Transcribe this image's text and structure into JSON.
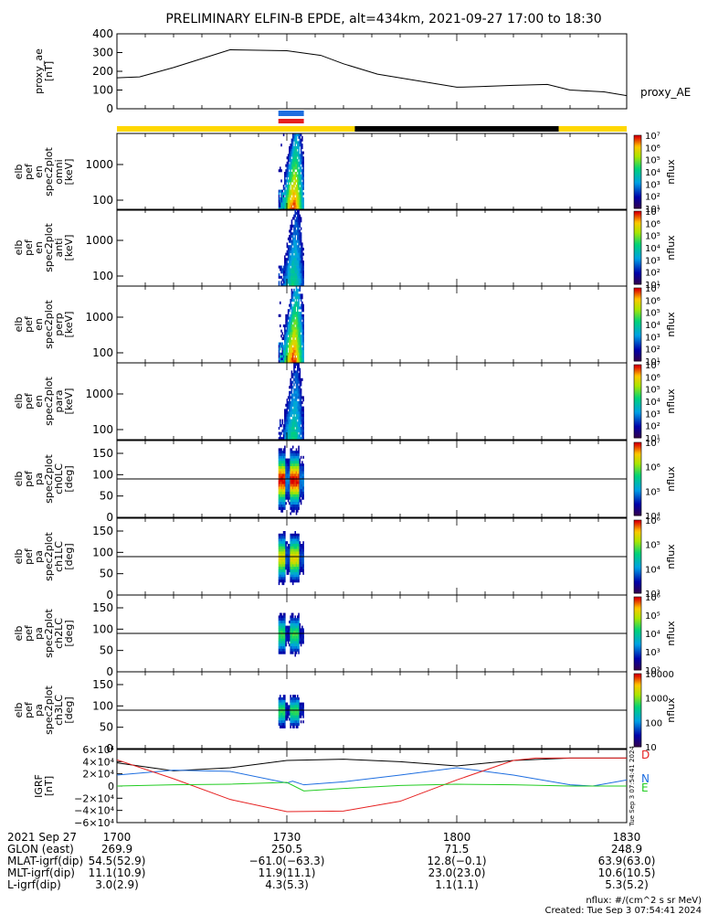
{
  "title": "PRELIMINARY ELFIN-B EPDE, alt=434km, 2021-09-27 17:00 to 18:30",
  "colors": {
    "yellow": "#ffd700",
    "black": "#000000",
    "blue": "#1e6ee0",
    "red": "#e62020",
    "green": "#22cc22"
  },
  "colorbar_unit": "nflux",
  "chart_data": [
    {
      "type": "line",
      "ylabel": [
        "proxy_ae",
        "[nT]"
      ],
      "legend": "proxy_AE",
      "y_ticks": [
        "0",
        "100",
        "200",
        "300",
        "400"
      ],
      "ylim": [
        0,
        400
      ],
      "x": [
        0,
        4,
        10,
        20,
        30,
        36,
        40,
        46,
        52,
        60,
        64,
        70,
        76,
        80,
        86,
        90
      ],
      "y": [
        165,
        170,
        220,
        315,
        310,
        285,
        240,
        185,
        155,
        115,
        118,
        125,
        130,
        100,
        90,
        70
      ]
    },
    {
      "type": "bar-strip",
      "description_segments": [
        {
          "x0": 0,
          "x1": 42,
          "color": "yellow"
        },
        {
          "x0": 42,
          "x1": 78,
          "color": "black"
        },
        {
          "x0": 78,
          "x1": 90,
          "color": "yellow"
        }
      ],
      "markers": [
        {
          "x0": 28.5,
          "x1": 33,
          "color": "blue"
        },
        {
          "x0": 28.5,
          "x1": 33,
          "color": "red"
        }
      ]
    },
    {
      "type": "heatmap",
      "ylabel": [
        "elb",
        "pef",
        "en",
        "spec2plot",
        "omni",
        "[keV]"
      ],
      "y_ticks": [
        "100",
        "1000"
      ],
      "colorbar_ticks": [
        "10¹",
        "10²",
        "10³",
        "10⁴",
        "10⁵",
        "10⁶",
        "10⁷"
      ]
    },
    {
      "type": "heatmap",
      "ylabel": [
        "elb",
        "pef",
        "en",
        "spec2plot",
        "anti",
        "[keV]"
      ],
      "y_ticks": [
        "100",
        "1000"
      ],
      "colorbar_ticks": [
        "10¹",
        "10²",
        "10³",
        "10⁴",
        "10⁵",
        "10⁶",
        "10⁷"
      ]
    },
    {
      "type": "heatmap",
      "ylabel": [
        "elb",
        "pef",
        "en",
        "spec2plot",
        "perp",
        "[keV]"
      ],
      "y_ticks": [
        "100",
        "1000"
      ],
      "colorbar_ticks": [
        "10¹",
        "10²",
        "10³",
        "10⁴",
        "10⁵",
        "10⁶",
        "10⁷"
      ]
    },
    {
      "type": "heatmap",
      "ylabel": [
        "elb",
        "pef",
        "en",
        "spec2plot",
        "para",
        "[keV]"
      ],
      "y_ticks": [
        "100",
        "1000"
      ],
      "colorbar_ticks": [
        "10¹",
        "10²",
        "10³",
        "10⁴",
        "10⁵",
        "10⁶",
        "10⁷"
      ]
    },
    {
      "type": "heatmap",
      "ylabel": [
        "elb",
        "pef",
        "pa",
        "spec2plot",
        "ch0LC",
        "[deg]"
      ],
      "y_ticks": [
        "0",
        "50",
        "100",
        "150"
      ],
      "ylim": [
        0,
        180
      ],
      "colorbar_ticks": [
        "10⁴",
        "10⁵",
        "10⁶",
        "10⁷"
      ]
    },
    {
      "type": "heatmap",
      "ylabel": [
        "elb",
        "pef",
        "pa",
        "spec2plot",
        "ch1LC",
        "[deg]"
      ],
      "y_ticks": [
        "0",
        "50",
        "100",
        "150"
      ],
      "ylim": [
        0,
        180
      ],
      "colorbar_ticks": [
        "10³",
        "10⁴",
        "10⁵",
        "10⁶"
      ]
    },
    {
      "type": "heatmap",
      "ylabel": [
        "elb",
        "pef",
        "pa",
        "spec2plot",
        "ch2LC",
        "[deg]"
      ],
      "y_ticks": [
        "0",
        "50",
        "100",
        "150"
      ],
      "ylim": [
        0,
        180
      ],
      "colorbar_ticks": [
        "10²",
        "10³",
        "10⁴",
        "10⁵",
        "10⁶"
      ]
    },
    {
      "type": "heatmap",
      "ylabel": [
        "elb",
        "pef",
        "pa",
        "spec2plot",
        "ch3LC",
        "[deg]"
      ],
      "y_ticks": [
        "0",
        "50",
        "100",
        "150"
      ],
      "ylim": [
        0,
        180
      ],
      "colorbar_ticks": [
        "10",
        "100",
        "1000",
        "10000"
      ]
    },
    {
      "type": "line",
      "ylabel": [
        "IGRF",
        "[nT]"
      ],
      "y_ticks": [
        "−6×10⁴",
        "−4×10⁴",
        "−2×10⁴",
        "0",
        "2×10⁴",
        "4×10⁴",
        "6×10⁴"
      ],
      "ylim": [
        -60000,
        60000
      ],
      "legend": [
        "D",
        "N",
        "E"
      ],
      "series": [
        {
          "color": "black",
          "x": [
            0,
            10,
            20,
            30,
            40,
            50,
            60,
            70,
            80,
            90
          ],
          "y": [
            38000,
            25000,
            30000,
            42000,
            44000,
            40000,
            33000,
            42000,
            46000,
            46000
          ]
        },
        {
          "color": "blue",
          "x": [
            0,
            10,
            20,
            30,
            31,
            33,
            40,
            50,
            60,
            70,
            80,
            84,
            90
          ],
          "y": [
            18000,
            26000,
            24000,
            5000,
            8000,
            2000,
            7000,
            18000,
            30000,
            18000,
            2000,
            0,
            10000
          ]
        },
        {
          "color": "red",
          "x": [
            0,
            10,
            20,
            30,
            40,
            50,
            60,
            70,
            74,
            80,
            90
          ],
          "y": [
            43000,
            12000,
            -22000,
            -42000,
            -41000,
            -25000,
            10000,
            42000,
            46000,
            46000,
            46000
          ]
        },
        {
          "color": "green",
          "x": [
            0,
            10,
            20,
            30,
            33,
            40,
            50,
            60,
            70,
            80,
            90
          ],
          "y": [
            0,
            2000,
            3000,
            6000,
            -8000,
            -4000,
            1000,
            3000,
            2000,
            0,
            0
          ]
        }
      ]
    }
  ],
  "footer": {
    "rows": [
      {
        "label": "2021 Sep 27",
        "values": [
          "1700",
          "1730",
          "1800",
          "1830"
        ]
      },
      {
        "label": "GLON (east)",
        "values": [
          "269.9",
          "250.5",
          "71.5",
          "248.9"
        ]
      },
      {
        "label": "MLAT-igrf(dip)",
        "values": [
          "54.5(52.9)",
          "−61.0(−63.3)",
          "12.8(−0.1)",
          "63.9(63.0)"
        ]
      },
      {
        "label": "MLT-igrf(dip)",
        "values": [
          "11.1(10.9)",
          "11.9(11.1)",
          "23.0(23.0)",
          "10.6(10.5)"
        ]
      },
      {
        "label": "L-igrf(dip)",
        "values": [
          "3.0(2.9)",
          "4.3(5.3)",
          "1.1(1.1)",
          "5.3(5.2)"
        ]
      }
    ],
    "units_note": "nflux: #/(cm^2 s sr MeV)",
    "created": "Created: Tue Sep  3 07:54:41 2024",
    "side_stamp": "Tue Sep  3 07:54:41 2024"
  }
}
